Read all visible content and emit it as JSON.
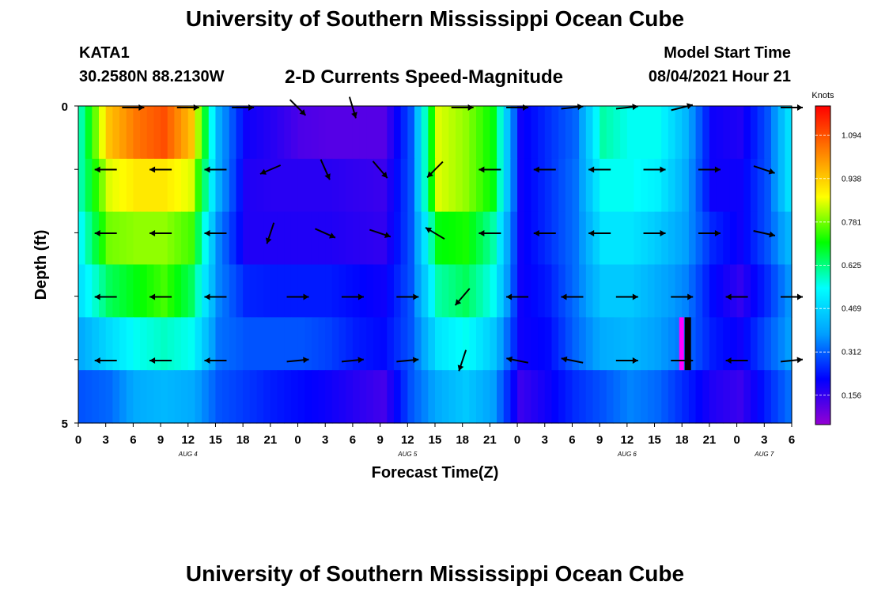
{
  "header": {
    "title": "University of Southern Mississippi Ocean Cube",
    "station": "KATA1",
    "coordinates": "30.2580N  88.2130W",
    "subtitle": "2-D Currents Speed-Magnitude",
    "model_label": "Model Start Time",
    "model_time": "08/04/2021 Hour 21"
  },
  "footer": {
    "title": "University of Southern Mississippi Ocean Cube"
  },
  "chart_data": {
    "type": "heatmap",
    "title": "2-D Currents Speed-Magnitude",
    "xlabel": "Forecast Time(Z)",
    "ylabel": "Depth (ft)",
    "y_range": [
      0,
      5
    ],
    "y_ticks": [
      "0",
      "5"
    ],
    "x_tick_labels": [
      "0",
      "3",
      "6",
      "9",
      "12",
      "15",
      "18",
      "21",
      "0",
      "3",
      "6",
      "9",
      "12",
      "15",
      "18",
      "21",
      "0",
      "3",
      "6",
      "9",
      "12",
      "15",
      "18",
      "21",
      "0",
      "3",
      "6"
    ],
    "date_labels": [
      {
        "label": "AUG 4",
        "tick_index": 4
      },
      {
        "label": "AUG 5",
        "tick_index": 12
      },
      {
        "label": "AUG 6",
        "tick_index": 20
      },
      {
        "label": "AUG 7",
        "tick_index": 25
      }
    ],
    "colorbar": {
      "unit": "Knots",
      "ticks": [
        "1.094",
        "0.938",
        "0.781",
        "0.625",
        "0.469",
        "0.312",
        "0.156"
      ],
      "range": [
        0.05,
        1.2
      ],
      "colors": [
        "#9400d3",
        "#0000ff",
        "#00a0ff",
        "#00ffff",
        "#00ff00",
        "#ffff00",
        "#ff8000",
        "#ff0000"
      ]
    },
    "depth_rows": 5,
    "time_columns": 27,
    "speed_knots": [
      [
        0.6,
        0.95,
        1.05,
        1.1,
        0.95,
        0.4,
        0.2,
        0.17,
        0.13,
        0.12,
        0.12,
        0.12,
        0.3,
        0.85,
        0.8,
        0.7,
        0.2,
        0.26,
        0.32,
        0.6,
        0.55,
        0.55,
        0.42,
        0.2,
        0.18,
        0.3,
        0.55
      ],
      [
        0.6,
        0.85,
        0.9,
        0.9,
        0.85,
        0.4,
        0.18,
        0.17,
        0.17,
        0.17,
        0.16,
        0.15,
        0.3,
        0.85,
        0.8,
        0.7,
        0.2,
        0.26,
        0.33,
        0.55,
        0.55,
        0.52,
        0.4,
        0.2,
        0.2,
        0.3,
        0.55
      ],
      [
        0.55,
        0.78,
        0.8,
        0.8,
        0.75,
        0.35,
        0.18,
        0.18,
        0.18,
        0.18,
        0.17,
        0.16,
        0.3,
        0.7,
        0.72,
        0.6,
        0.2,
        0.26,
        0.33,
        0.5,
        0.5,
        0.45,
        0.38,
        0.25,
        0.2,
        0.3,
        0.45
      ],
      [
        0.5,
        0.65,
        0.7,
        0.75,
        0.65,
        0.35,
        0.25,
        0.24,
        0.24,
        0.24,
        0.22,
        0.2,
        0.3,
        0.6,
        0.65,
        0.55,
        0.2,
        0.24,
        0.33,
        0.45,
        0.45,
        0.4,
        0.35,
        0.22,
        0.16,
        0.26,
        0.4
      ],
      [
        0.4,
        0.48,
        0.55,
        0.58,
        0.55,
        0.33,
        0.3,
        0.3,
        0.3,
        0.28,
        0.24,
        0.22,
        0.3,
        0.5,
        0.55,
        0.45,
        0.2,
        0.22,
        0.32,
        0.4,
        0.42,
        0.38,
        0.33,
        0.24,
        0.2,
        0.3,
        0.4
      ],
      [
        0.3,
        0.32,
        0.4,
        0.42,
        0.4,
        0.3,
        0.27,
        0.24,
        0.22,
        0.2,
        0.17,
        0.14,
        0.3,
        0.4,
        0.45,
        0.38,
        0.15,
        0.2,
        0.26,
        0.3,
        0.35,
        0.32,
        0.25,
        0.18,
        0.15,
        0.25,
        0.35
      ]
    ],
    "vectors": [
      {
        "depth": 0,
        "x": [
          2,
          4,
          6,
          8,
          10,
          14,
          16,
          18,
          20,
          22,
          26
        ],
        "u": [
          1,
          0.8,
          0.8,
          0.6,
          0.3,
          1,
          1,
          0.9,
          0.9,
          0.4,
          0.6
        ],
        "v": [
          0,
          0,
          0,
          0.6,
          1,
          0,
          0,
          -0.1,
          -0.1,
          -0.1,
          0
        ]
      },
      {
        "depth": 1,
        "x": [
          1,
          3,
          5,
          7,
          9,
          11,
          13,
          15,
          17,
          19,
          21,
          23,
          25
        ],
        "u": [
          -1,
          -1,
          -1,
          -0.7,
          0.4,
          0.6,
          -0.5,
          -1,
          -1,
          -1,
          1,
          1,
          0.9
        ],
        "v": [
          0,
          0,
          0,
          0.3,
          0.9,
          0.7,
          0.5,
          0,
          0,
          0,
          0,
          0,
          0.3
        ]
      },
      {
        "depth": 2,
        "x": [
          1,
          3,
          5,
          7,
          9,
          11,
          13,
          15,
          17,
          19,
          21,
          23,
          25
        ],
        "u": [
          -1,
          -1,
          -1,
          -0.3,
          0.9,
          0.9,
          -0.5,
          -1,
          -1,
          -1,
          1,
          1,
          0.9
        ],
        "v": [
          0,
          0,
          0,
          0.9,
          0.4,
          0.3,
          -0.3,
          0,
          0,
          0,
          0,
          0,
          0.2
        ]
      },
      {
        "depth": 3,
        "x": [
          1,
          3,
          5,
          8,
          10,
          12,
          14,
          16,
          18,
          20,
          22,
          24,
          26
        ],
        "u": [
          -1,
          -1,
          -1,
          1,
          1,
          1,
          -0.6,
          -1,
          -1,
          1,
          1,
          -1,
          1
        ],
        "v": [
          0,
          0,
          0,
          0,
          0,
          0,
          0.7,
          0,
          0,
          0,
          0,
          0,
          0
        ]
      },
      {
        "depth": 4,
        "x": [
          1,
          3,
          5,
          8,
          10,
          12,
          14,
          16,
          18,
          20,
          22,
          24,
          26
        ],
        "u": [
          -1,
          -1,
          -1,
          1,
          1,
          1,
          -0.3,
          -1,
          -1,
          1,
          1,
          -1,
          1
        ],
        "v": [
          0,
          0,
          0,
          -0.1,
          -0.1,
          -0.1,
          0.9,
          -0.2,
          -0.2,
          0,
          0,
          0,
          -0.1
        ]
      }
    ]
  }
}
